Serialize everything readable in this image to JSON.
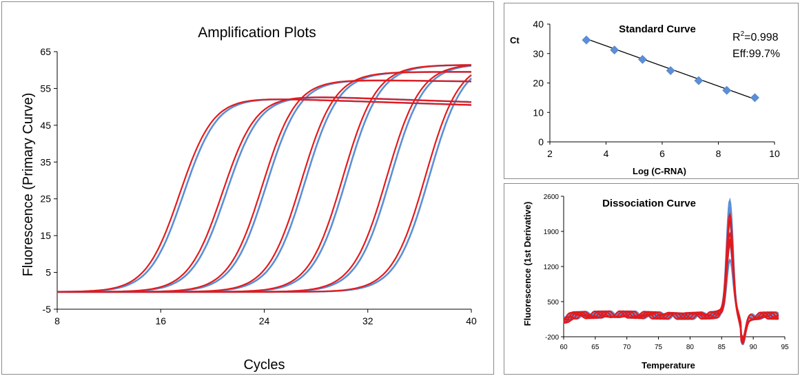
{
  "chart_data": [
    {
      "type": "line",
      "title": "Amplification Plots",
      "xlabel": "Cycles",
      "ylabel": "Fluorescence (Primary Curve)",
      "xlim": [
        8,
        40
      ],
      "ylim": [
        -5,
        65
      ],
      "x_ticks": [
        "8",
        "16",
        "24",
        "32",
        "40"
      ],
      "y_ticks": [
        "-5",
        "5",
        "15",
        "25",
        "35",
        "45",
        "55",
        "65"
      ],
      "grid": false,
      "colors": {
        "replicate_a": "#e31a1c",
        "replicate_b": "#5b8fd6"
      },
      "series": [
        {
          "ct": 17.6,
          "plateau": 52.7,
          "decline": 2.2
        },
        {
          "ct": 20.9,
          "plateau": 53.3,
          "decline": 2.0
        },
        {
          "ct": 24.0,
          "plateau": 57.5,
          "decline": 0.6
        },
        {
          "ct": 27.0,
          "plateau": 59.5,
          "decline": 0.0
        },
        {
          "ct": 30.2,
          "plateau": 61.4,
          "decline": 0.0
        },
        {
          "ct": 33.6,
          "plateau": 61.7,
          "decline": 0.0
        },
        {
          "ct": 36.6,
          "plateau": 62.5,
          "decline": 0.0
        }
      ]
    },
    {
      "type": "scatter",
      "title": "Standard Curve",
      "xlabel": "Log (C-RNA)",
      "ylabel": "Ct",
      "xlim": [
        2,
        10
      ],
      "ylim": [
        0,
        40
      ],
      "x_ticks": [
        "2",
        "4",
        "6",
        "8",
        "10"
      ],
      "y_ticks": [
        "0",
        "10",
        "20",
        "30",
        "40"
      ],
      "grid": false,
      "marker_color": "#5b8fd6",
      "fit_line_color": "#000000",
      "annotations": {
        "r2_label": "R",
        "r2_sup": "2",
        "r2_value": "=0.998",
        "eff": "Eff:99.7%"
      },
      "points": [
        {
          "x": 3.3,
          "y": 34.6
        },
        {
          "x": 4.3,
          "y": 31.2
        },
        {
          "x": 5.3,
          "y": 28.0
        },
        {
          "x": 6.3,
          "y": 24.2
        },
        {
          "x": 7.3,
          "y": 20.8
        },
        {
          "x": 8.3,
          "y": 17.5
        },
        {
          "x": 9.3,
          "y": 15.0
        }
      ],
      "fit": {
        "x": [
          3.3,
          9.3
        ],
        "y": [
          35.0,
          14.5
        ]
      }
    },
    {
      "type": "line",
      "title": "Dissociation Curve",
      "xlabel": "Temperature",
      "ylabel": "Fluorescence (1st Derivative)",
      "xlim": [
        60,
        95
      ],
      "ylim": [
        -200,
        2600
      ],
      "x_ticks": [
        "60",
        "65",
        "70",
        "75",
        "80",
        "85",
        "90",
        "95"
      ],
      "y_ticks": [
        "-200",
        "500",
        "1200",
        "1900",
        "2600"
      ],
      "grid": false,
      "colors": {
        "replicate_a": "#e31a1c",
        "replicate_b": "#5b8fd6"
      },
      "peak_temperature": 86.3,
      "peak_heights": {
        "replicate_b": [
          2250,
          2150,
          1850,
          1450,
          1150
        ],
        "replicate_a": [
          2000,
          1900,
          1650,
          1550,
          1450
        ]
      }
    }
  ]
}
